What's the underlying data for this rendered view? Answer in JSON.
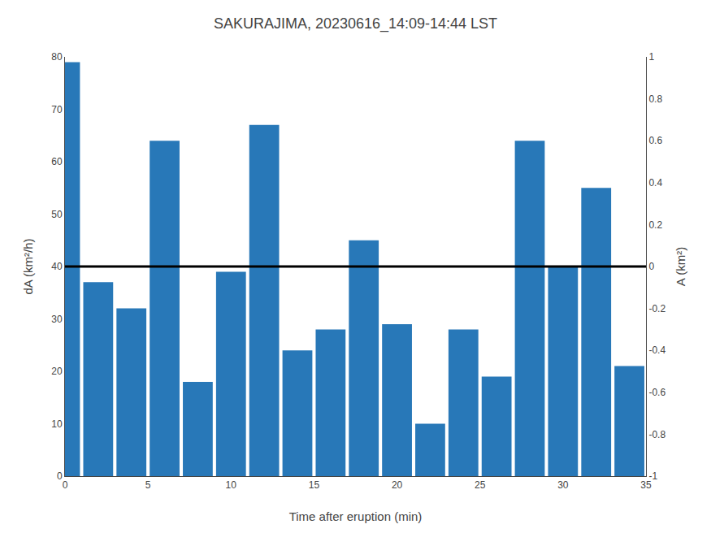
{
  "chart_data": {
    "type": "bar",
    "title": "SAKURAJIMA, 20230616_14:09-14:44 LST",
    "xlabel": "Time after eruption (min)",
    "ylabel": "dA (km²/h)",
    "y2label": "A (km²)",
    "x": [
      0,
      2,
      4,
      6,
      8,
      10,
      12,
      14,
      16,
      18,
      20,
      22,
      24,
      26,
      28,
      30,
      32,
      34
    ],
    "values": [
      79,
      37,
      32,
      64,
      18,
      39,
      67,
      24,
      28,
      45,
      29,
      10,
      28,
      19,
      64,
      40,
      55,
      21
    ],
    "color": "#2878b8",
    "hline": {
      "y": 40,
      "color": "black"
    },
    "xlim": [
      0,
      35
    ],
    "xticks": [
      0,
      5,
      10,
      15,
      20,
      25,
      30,
      35
    ],
    "ylim": [
      0,
      80
    ],
    "yticks": [
      0,
      10,
      20,
      30,
      40,
      50,
      60,
      70,
      80
    ],
    "y2lim": [
      -1,
      1
    ],
    "y2ticks": [
      -1,
      -0.8,
      -0.6,
      -0.4,
      -0.2,
      0,
      0.2,
      0.4,
      0.6,
      0.8,
      1
    ],
    "grid": false
  }
}
